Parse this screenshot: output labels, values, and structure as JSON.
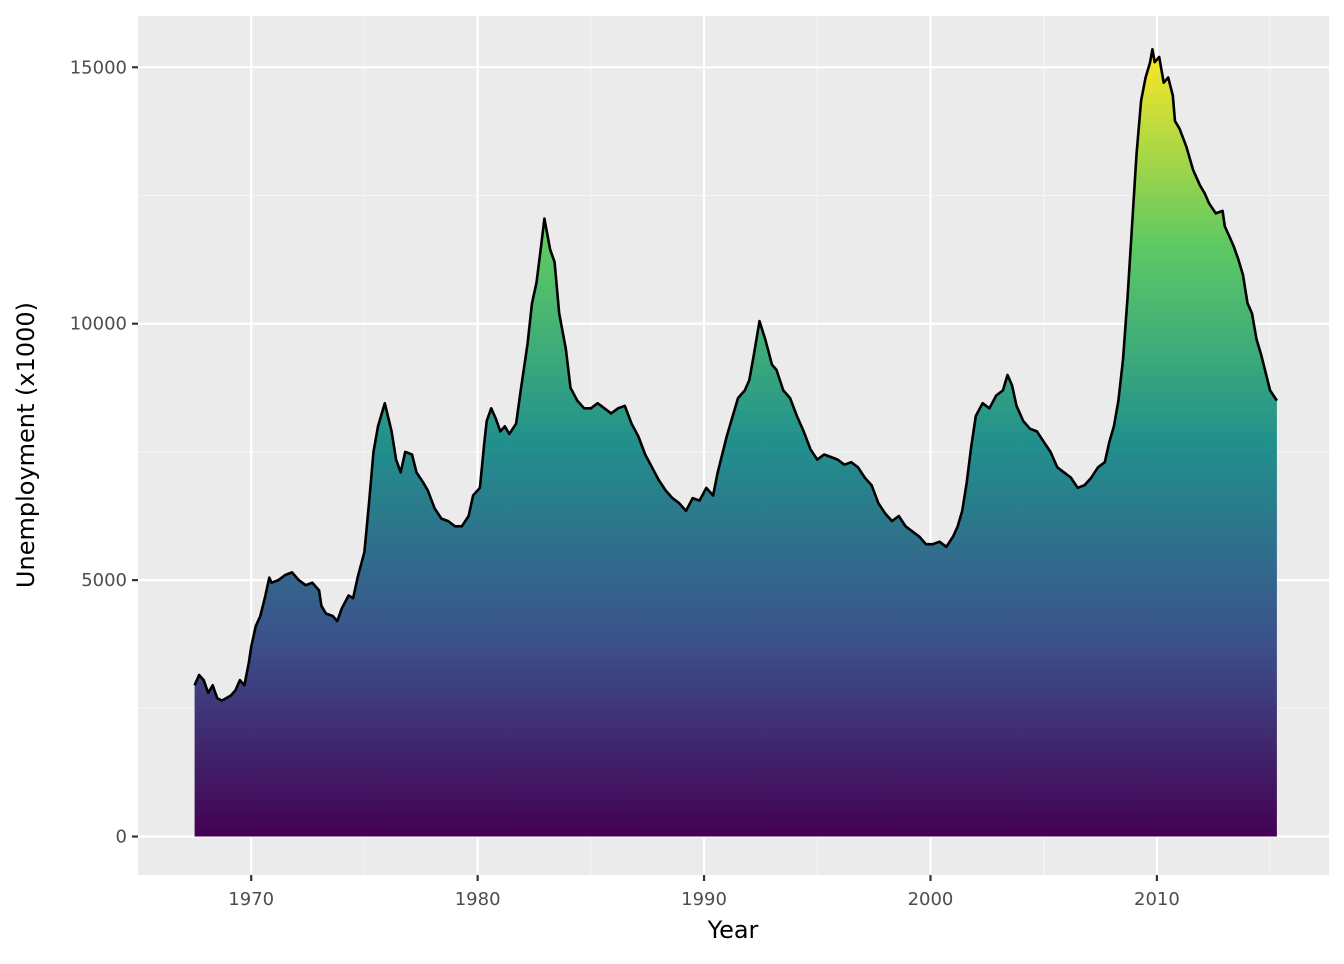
{
  "chart_data": {
    "type": "area",
    "title": "",
    "xlabel": "Year",
    "ylabel": "Unemployment (x1000)",
    "xlim": [
      1965.0,
      2017.6
    ],
    "ylim": [
      -750,
      16000
    ],
    "x_ticks": [
      1970,
      1980,
      1990,
      2000,
      2010
    ],
    "x_tick_labels": [
      "1970",
      "1980",
      "1990",
      "2000",
      "2010"
    ],
    "y_ticks": [
      0,
      5000,
      10000,
      15000
    ],
    "y_tick_labels": [
      "0",
      "5000",
      "10000",
      "15000"
    ],
    "grid": true,
    "legend": "none",
    "fill": "vertical viridis gradient mapped to unemployment (0 to 15350)",
    "colors": {
      "panel_background": "#ebebeb",
      "grid_major": "#ffffff",
      "grid_minor": "#f5f5f5",
      "line": "#000000",
      "gradient_stops": [
        "#440154",
        "#3b528b",
        "#21908d",
        "#5dc963",
        "#fde725"
      ]
    },
    "series": [
      {
        "x": [
          1967.5,
          1967.7,
          1967.9,
          1968.1,
          1968.3,
          1968.5,
          1968.7,
          1968.9,
          1969.1,
          1969.3,
          1969.5,
          1969.7,
          1969.9,
          1970.0,
          1970.2,
          1970.4,
          1970.6,
          1970.8,
          1970.9,
          1971.2,
          1971.5,
          1971.8,
          1972.1,
          1972.4,
          1972.7,
          1973.0,
          1973.1,
          1973.3,
          1973.6,
          1973.8,
          1974.0,
          1974.3,
          1974.5,
          1974.7,
          1975.0,
          1975.2,
          1975.4,
          1975.6,
          1975.9,
          1976.2,
          1976.4,
          1976.6,
          1976.8,
          1977.1,
          1977.3,
          1977.6,
          1977.8,
          1978.1,
          1978.4,
          1978.7,
          1979.0,
          1979.3,
          1979.6,
          1979.8,
          1980.1,
          1980.3,
          1980.4,
          1980.6,
          1980.8,
          1981.0,
          1981.2,
          1981.4,
          1981.7,
          1981.9,
          1982.2,
          1982.4,
          1982.6,
          1982.8,
          1982.95,
          1983.2,
          1983.4,
          1983.6,
          1983.9,
          1984.1,
          1984.4,
          1984.7,
          1985.0,
          1985.3,
          1985.6,
          1985.9,
          1986.2,
          1986.5,
          1986.8,
          1987.1,
          1987.4,
          1987.7,
          1988.0,
          1988.3,
          1988.6,
          1988.9,
          1989.2,
          1989.5,
          1989.8,
          1990.1,
          1990.4,
          1990.6,
          1990.8,
          1991.0,
          1991.2,
          1991.5,
          1991.8,
          1992.0,
          1992.2,
          1992.45,
          1992.7,
          1993.0,
          1993.2,
          1993.5,
          1993.8,
          1994.1,
          1994.4,
          1994.7,
          1995.0,
          1995.3,
          1995.6,
          1995.9,
          1996.2,
          1996.5,
          1996.8,
          1997.1,
          1997.4,
          1997.7,
          1998.0,
          1998.3,
          1998.6,
          1998.9,
          1999.2,
          1999.5,
          1999.8,
          2000.1,
          2000.4,
          2000.7,
          2001.0,
          2001.2,
          2001.4,
          2001.6,
          2001.8,
          2002.0,
          2002.3,
          2002.6,
          2002.9,
          2003.2,
          2003.4,
          2003.6,
          2003.8,
          2004.1,
          2004.4,
          2004.7,
          2005.0,
          2005.3,
          2005.6,
          2005.9,
          2006.2,
          2006.5,
          2006.8,
          2007.1,
          2007.4,
          2007.7,
          2007.9,
          2008.1,
          2008.3,
          2008.5,
          2008.7,
          2008.9,
          2009.1,
          2009.3,
          2009.5,
          2009.7,
          2009.8,
          2009.9,
          2010.1,
          2010.3,
          2010.5,
          2010.7,
          2010.8,
          2011.0,
          2011.3,
          2011.6,
          2011.9,
          2012.1,
          2012.3,
          2012.6,
          2012.9,
          2013.0,
          2013.2,
          2013.4,
          2013.6,
          2013.8,
          2014.0,
          2014.2,
          2014.4,
          2014.6,
          2014.8,
          2015.0,
          2015.3
        ],
        "y": [
          2950,
          3150,
          3050,
          2800,
          2950,
          2700,
          2650,
          2700,
          2750,
          2850,
          3050,
          2950,
          3400,
          3700,
          4100,
          4300,
          4650,
          5050,
          4950,
          5000,
          5100,
          5150,
          5000,
          4900,
          4950,
          4800,
          4500,
          4350,
          4300,
          4200,
          4450,
          4700,
          4650,
          5050,
          5550,
          6500,
          7500,
          8000,
          8450,
          7900,
          7350,
          7100,
          7500,
          7450,
          7100,
          6900,
          6750,
          6400,
          6200,
          6150,
          6050,
          6050,
          6250,
          6650,
          6800,
          7700,
          8100,
          8350,
          8150,
          7900,
          8000,
          7850,
          8050,
          8700,
          9600,
          10400,
          10800,
          11500,
          12050,
          11450,
          11200,
          10200,
          9500,
          8750,
          8500,
          8350,
          8350,
          8450,
          8350,
          8250,
          8350,
          8400,
          8050,
          7800,
          7450,
          7200,
          6950,
          6750,
          6600,
          6500,
          6350,
          6600,
          6550,
          6800,
          6650,
          7100,
          7450,
          7800,
          8100,
          8550,
          8700,
          8900,
          9400,
          10050,
          9700,
          9200,
          9100,
          8700,
          8550,
          8200,
          7900,
          7550,
          7350,
          7450,
          7400,
          7350,
          7250,
          7300,
          7200,
          7000,
          6850,
          6500,
          6300,
          6150,
          6250,
          6050,
          5950,
          5850,
          5700,
          5700,
          5750,
          5650,
          5850,
          6050,
          6350,
          6900,
          7600,
          8200,
          8450,
          8350,
          8600,
          8700,
          9000,
          8800,
          8400,
          8100,
          7950,
          7900,
          7700,
          7500,
          7200,
          7100,
          7000,
          6800,
          6850,
          7000,
          7200,
          7300,
          7700,
          8000,
          8500,
          9300,
          10500,
          11900,
          13300,
          14350,
          14800,
          15100,
          15350,
          15100,
          15200,
          14700,
          14800,
          14450,
          13950,
          13800,
          13450,
          13000,
          12700,
          12550,
          12350,
          12150,
          12200,
          11900,
          11700,
          11500,
          11250,
          10950,
          10400,
          10200,
          9700,
          9400,
          9050,
          8700,
          8500
        ]
      }
    ]
  }
}
